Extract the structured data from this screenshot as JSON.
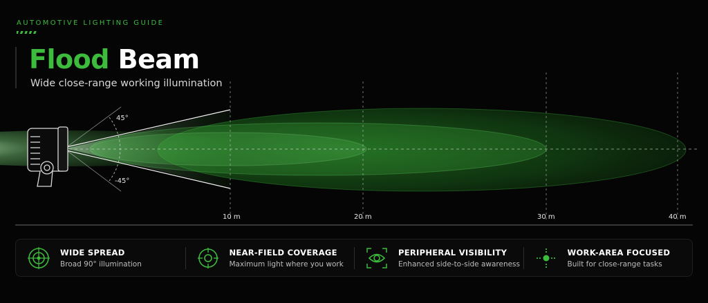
{
  "header": {
    "eyebrow": "AUTOMOTIVE LIGHTING GUIDE",
    "title_accent": "Flood",
    "title_main": "Beam",
    "subtitle": "Wide close-range working illumination"
  },
  "beam": {
    "angles": [
      "45°",
      "-45°"
    ],
    "distances": [
      "10 m",
      "20 m",
      "30 m",
      "40 m"
    ]
  },
  "features": [
    {
      "icon": "crosshair-target-icon",
      "title": "WIDE SPREAD",
      "desc": "Broad 90° illumination"
    },
    {
      "icon": "target-circle-icon",
      "title": "NEAR-FIELD COVERAGE",
      "desc": "Maximum light where you work"
    },
    {
      "icon": "eye-icon",
      "title": "PERIPHERAL VISIBILITY",
      "desc": "Enhanced side-to-side awareness"
    },
    {
      "icon": "focus-point-icon",
      "title": "WORK-AREA FOCUSED",
      "desc": "Built for close-range tasks"
    }
  ],
  "colors": {
    "accent": "#3dbb3d",
    "beam": "#2fa52f",
    "background": "#050505"
  }
}
